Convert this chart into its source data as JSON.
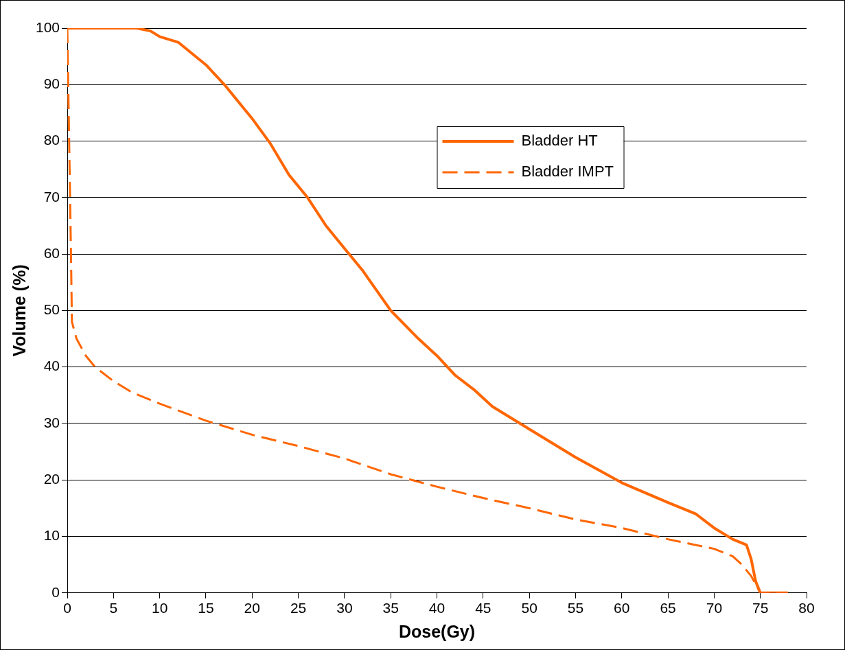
{
  "chart_data": {
    "type": "line",
    "xlabel": "Dose(Gy)",
    "ylabel": "Volume (%)",
    "xlim": [
      0,
      80
    ],
    "xticks": [
      0,
      5,
      10,
      15,
      20,
      25,
      30,
      35,
      40,
      45,
      50,
      55,
      60,
      65,
      70,
      75,
      80
    ],
    "ylim": [
      0,
      100
    ],
    "yticks": [
      0,
      10,
      20,
      30,
      40,
      50,
      60,
      70,
      80,
      90,
      100
    ],
    "grid": "y",
    "legend": "top right",
    "marker": "none",
    "series": [
      {
        "name": "Bladder HT",
        "color": "#ff6600",
        "line_style": "solid",
        "x": [
          0,
          7.5,
          9,
          10,
          12,
          15,
          17,
          20,
          22,
          24,
          26,
          28,
          30,
          32,
          35,
          38,
          40,
          42,
          44,
          46,
          48,
          50,
          55,
          60,
          65,
          68,
          70,
          72,
          73.5,
          74,
          74.5,
          75,
          78
        ],
        "values": [
          100,
          100,
          99.5,
          98.5,
          97.5,
          93.5,
          90,
          84,
          79.5,
          74,
          70,
          65,
          61,
          57,
          50,
          45,
          42,
          38.5,
          36,
          33,
          31,
          29,
          24,
          19.5,
          16,
          14,
          11.5,
          9.5,
          8.5,
          6,
          2,
          0,
          0
        ]
      },
      {
        "name": "Bladder IMPT",
        "color": "#ff6600",
        "line_style": "dashed",
        "x": [
          0,
          0.2,
          0.4,
          0.5,
          1,
          2,
          3,
          5,
          7,
          10,
          15,
          20,
          25,
          30,
          35,
          40,
          45,
          50,
          55,
          60,
          65,
          70,
          72,
          73,
          74,
          75,
          78
        ],
        "values": [
          100,
          80,
          60,
          48,
          45,
          42,
          40,
          37.5,
          35.5,
          33.5,
          30.5,
          28,
          26,
          23.8,
          21,
          18.8,
          16.8,
          15,
          13,
          11.5,
          9.5,
          7.8,
          6.5,
          5,
          3,
          0,
          0
        ]
      }
    ]
  }
}
